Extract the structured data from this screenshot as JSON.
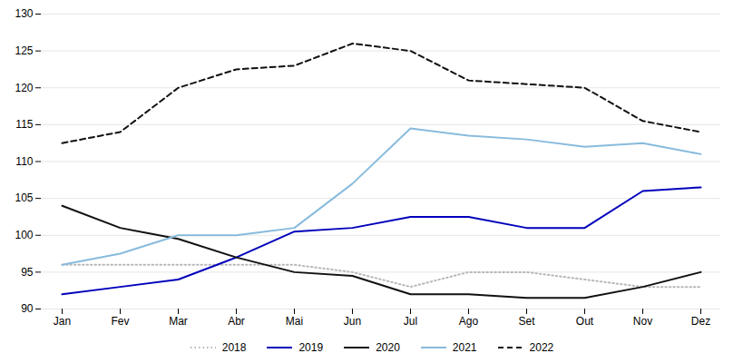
{
  "chart_data": {
    "type": "line",
    "categories": [
      "Jan",
      "Fev",
      "Mar",
      "Abr",
      "Mai",
      "Jun",
      "Jul",
      "Ago",
      "Set",
      "Out",
      "Nov",
      "Dez"
    ],
    "series": [
      {
        "name": "2018",
        "color": "#b8b8b8",
        "line_style": "dotted",
        "values": [
          96,
          96,
          96,
          96,
          96,
          95,
          93,
          95,
          95,
          94,
          93,
          93
        ]
      },
      {
        "name": "2019",
        "color": "#0000bb",
        "line_style": "solid",
        "values": [
          92,
          93,
          94,
          97,
          100.5,
          101,
          102.5,
          102.5,
          101,
          101,
          106,
          106.5
        ]
      },
      {
        "name": "2020",
        "color": "#111111",
        "line_style": "solid",
        "values": [
          104,
          101,
          99.5,
          97,
          95,
          94.5,
          92,
          92,
          91.5,
          91.5,
          93,
          95
        ]
      },
      {
        "name": "2021",
        "color": "#88bbdd",
        "line_style": "solid",
        "values": [
          96,
          97.5,
          100,
          100,
          101,
          107,
          114.5,
          113.5,
          113,
          112,
          112.5,
          111
        ]
      },
      {
        "name": "2022",
        "color": "#111111",
        "line_style": "dashed",
        "values": [
          112.5,
          114,
          120,
          122.5,
          123,
          126,
          125,
          121,
          120.5,
          120,
          115.5,
          114
        ]
      }
    ],
    "ylim": [
      90,
      130
    ],
    "yticks": [
      90,
      95,
      100,
      105,
      110,
      115,
      120,
      125,
      130
    ],
    "grid": true,
    "legend": "bottom"
  }
}
